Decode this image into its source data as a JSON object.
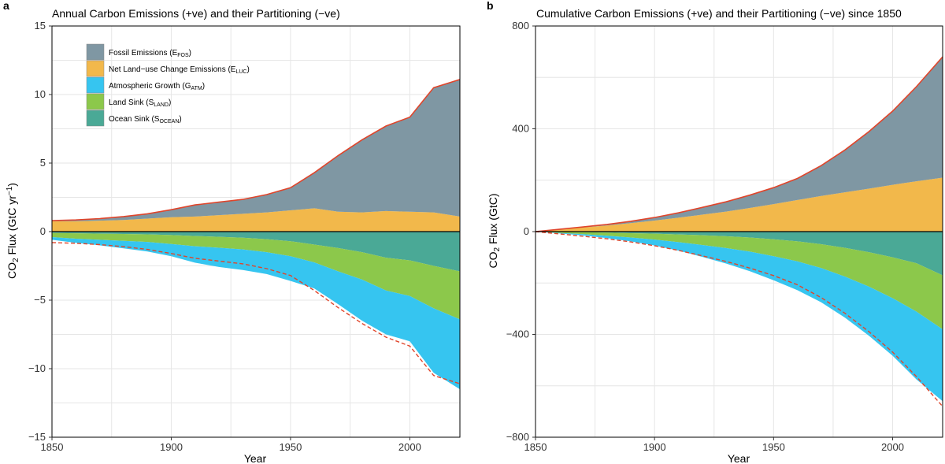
{
  "panels": [
    {
      "letter": "a",
      "title": "Annual Carbon Emissions (+ve) and their Partitioning (−ve)"
    },
    {
      "letter": "b",
      "title": "Cumulative Carbon Emissions (+ve) and their Partitioning (−ve) since 1850"
    }
  ],
  "colors": {
    "fossil": "#7f97a3",
    "luc": "#f2b84b",
    "atm": "#36c5f0",
    "land": "#8cc84b",
    "ocean": "#4aa996",
    "total_line": "#e0452b",
    "grid": "#e6e6e6",
    "zero_line": "#000000"
  },
  "legend": [
    {
      "key": "fossil",
      "label": "Fossil Emissions",
      "sub": "FOS",
      "sym": "E"
    },
    {
      "key": "luc",
      "label": "Net Land−use Change Emissions",
      "sub": "LUC",
      "sym": "E"
    },
    {
      "key": "atm",
      "label": "Atmospheric Growth",
      "sub": "ATM",
      "sym": "G"
    },
    {
      "key": "land",
      "label": "Land Sink",
      "sub": "LAND",
      "sym": "S"
    },
    {
      "key": "ocean",
      "label": "Ocean Sink",
      "sub": "OCEAN",
      "sym": "S"
    }
  ],
  "chart_data": [
    {
      "type": "area",
      "title": "Annual Carbon Emissions (+ve) and their Partitioning (−ve)",
      "xlabel": "Year",
      "ylabel": "CO2 Flux (GtC yr−1)",
      "xlim": [
        1850,
        2021
      ],
      "ylim": [
        -15,
        15
      ],
      "xticks": [
        1850,
        1900,
        1950,
        2000
      ],
      "yticks": [
        -15,
        -10,
        -5,
        0,
        5,
        10,
        15
      ],
      "ytick_labels": [
        "−15",
        "−10",
        "−5",
        "0",
        "5",
        "10",
        "15"
      ],
      "x": [
        1850,
        1860,
        1870,
        1880,
        1890,
        1900,
        1910,
        1920,
        1930,
        1940,
        1950,
        1960,
        1970,
        1980,
        1990,
        2000,
        2010,
        2021
      ],
      "series": [
        {
          "name": "Fossil Emissions",
          "key": "fossil",
          "values": [
            0.05,
            0.1,
            0.15,
            0.25,
            0.35,
            0.55,
            0.85,
            0.95,
            1.05,
            1.3,
            1.65,
            2.6,
            4.1,
            5.3,
            6.2,
            6.9,
            9.1,
            10.0
          ]
        },
        {
          "name": "Net Land-use Change Emissions",
          "key": "luc",
          "values": [
            0.75,
            0.75,
            0.8,
            0.85,
            0.95,
            1.05,
            1.1,
            1.2,
            1.3,
            1.4,
            1.55,
            1.7,
            1.45,
            1.4,
            1.5,
            1.45,
            1.4,
            1.1
          ]
        },
        {
          "name": "Atmospheric Growth",
          "key": "atm",
          "values": [
            -0.2,
            -0.3,
            -0.4,
            -0.55,
            -0.7,
            -0.9,
            -1.2,
            -1.4,
            -1.5,
            -1.6,
            -1.8,
            -1.9,
            -2.4,
            -3.0,
            -3.2,
            -3.3,
            -4.7,
            -5.1
          ]
        },
        {
          "name": "Land Sink",
          "key": "land",
          "values": [
            -0.3,
            -0.4,
            -0.45,
            -0.5,
            -0.55,
            -0.65,
            -0.75,
            -0.8,
            -0.85,
            -0.95,
            -1.1,
            -1.3,
            -1.7,
            -2.0,
            -2.4,
            -2.6,
            -3.1,
            -3.5
          ]
        },
        {
          "name": "Ocean Sink",
          "key": "ocean",
          "values": [
            -0.1,
            -0.12,
            -0.15,
            -0.17,
            -0.2,
            -0.25,
            -0.32,
            -0.38,
            -0.45,
            -0.55,
            -0.7,
            -0.95,
            -1.2,
            -1.5,
            -1.9,
            -2.1,
            -2.5,
            -2.9
          ]
        }
      ],
      "total_emissions_line": [
        0.8,
        0.85,
        0.95,
        1.1,
        1.3,
        1.6,
        1.95,
        2.15,
        2.35,
        2.7,
        3.2,
        4.3,
        5.55,
        6.7,
        7.7,
        8.35,
        10.5,
        11.1
      ]
    },
    {
      "type": "area",
      "title": "Cumulative Carbon Emissions (+ve) and their Partitioning (−ve) since 1850",
      "xlabel": "Year",
      "ylabel": "CO2 Flux (GtC)",
      "xlim": [
        1850,
        2021
      ],
      "ylim": [
        -800,
        800
      ],
      "xticks": [
        1850,
        1900,
        1950,
        2000
      ],
      "yticks": [
        -800,
        -400,
        0,
        400,
        800
      ],
      "ytick_labels": [
        "−800",
        "−400",
        "0",
        "400",
        "800"
      ],
      "x": [
        1850,
        1860,
        1870,
        1880,
        1890,
        1900,
        1910,
        1920,
        1930,
        1940,
        1950,
        1960,
        1970,
        1980,
        1990,
        2000,
        2010,
        2021
      ],
      "series": [
        {
          "name": "Fossil Emissions",
          "key": "fossil",
          "values": [
            0,
            1,
            2,
            4,
            7,
            12,
            19,
            28,
            38,
            50,
            64,
            84,
            118,
            165,
            222,
            287,
            368,
            470
          ]
        },
        {
          "name": "Net Land-use Change Emissions",
          "key": "luc",
          "values": [
            0,
            8,
            16,
            24,
            33,
            43,
            54,
            66,
            78,
            92,
            107,
            123,
            139,
            153,
            167,
            182,
            196,
            210
          ]
        },
        {
          "name": "Atmospheric Growth",
          "key": "atm",
          "values": [
            0,
            -2,
            -5,
            -9,
            -15,
            -23,
            -33,
            -46,
            -60,
            -76,
            -93,
            -112,
            -133,
            -160,
            -191,
            -224,
            -264,
            -280
          ]
        },
        {
          "name": "Land Sink",
          "key": "land",
          "values": [
            0,
            -4,
            -8,
            -12,
            -17,
            -23,
            -30,
            -38,
            -46,
            -55,
            -66,
            -78,
            -93,
            -112,
            -134,
            -159,
            -188,
            -210
          ]
        },
        {
          "name": "Ocean Sink",
          "key": "ocean",
          "values": [
            0,
            -1,
            -2,
            -4,
            -6,
            -8,
            -11,
            -14,
            -18,
            -23,
            -30,
            -38,
            -49,
            -63,
            -80,
            -100,
            -123,
            -170
          ]
        }
      ],
      "total_emissions_line": [
        0,
        9,
        18,
        28,
        40,
        55,
        73,
        94,
        116,
        142,
        171,
        207,
        257,
        318,
        389,
        469,
        564,
        680
      ]
    }
  ]
}
